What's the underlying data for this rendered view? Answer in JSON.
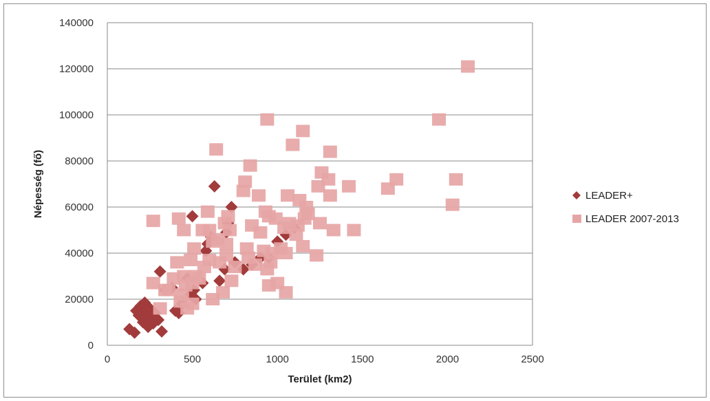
{
  "chart_data": {
    "type": "scatter",
    "xlabel": "Terület (km2)",
    "ylabel": "Népesség (fő)",
    "xlim": [
      0,
      2500
    ],
    "ylim": [
      0,
      140000
    ],
    "x_ticks": [
      0,
      500,
      1000,
      1500,
      2000,
      2500
    ],
    "y_ticks": [
      0,
      20000,
      40000,
      60000,
      80000,
      100000,
      120000,
      140000
    ],
    "grid": "horizontal",
    "legend_position": "right",
    "series": [
      {
        "name": "LEADER+",
        "marker": "diamond",
        "color": "#a23b3b",
        "points": [
          [
            130,
            7000
          ],
          [
            160,
            5500
          ],
          [
            170,
            15000
          ],
          [
            185,
            13000
          ],
          [
            195,
            17000
          ],
          [
            205,
            12000
          ],
          [
            210,
            10000
          ],
          [
            220,
            18500
          ],
          [
            225,
            14500
          ],
          [
            235,
            11000
          ],
          [
            240,
            8000
          ],
          [
            250,
            16000
          ],
          [
            255,
            12500
          ],
          [
            270,
            9500
          ],
          [
            280,
            14000
          ],
          [
            300,
            11000
          ],
          [
            310,
            32000
          ],
          [
            320,
            6000
          ],
          [
            340,
            24000
          ],
          [
            380,
            25000
          ],
          [
            400,
            15000
          ],
          [
            420,
            14000
          ],
          [
            440,
            18000
          ],
          [
            470,
            29000
          ],
          [
            490,
            22000
          ],
          [
            500,
            56000
          ],
          [
            510,
            24000
          ],
          [
            520,
            20000
          ],
          [
            560,
            27000
          ],
          [
            580,
            41000
          ],
          [
            590,
            44000
          ],
          [
            610,
            47000
          ],
          [
            630,
            69000
          ],
          [
            660,
            28000
          ],
          [
            690,
            33000
          ],
          [
            700,
            49000
          ],
          [
            710,
            53000
          ],
          [
            730,
            60000
          ],
          [
            750,
            36000
          ],
          [
            800,
            33000
          ],
          [
            850,
            35000
          ],
          [
            900,
            38000
          ],
          [
            950,
            38000
          ],
          [
            1000,
            45000
          ],
          [
            1050,
            48000
          ],
          [
            1100,
            51000
          ]
        ]
      },
      {
        "name": "LEADER 2007-2013",
        "marker": "square",
        "color": "#e6a5a5",
        "points": [
          [
            270,
            54000
          ],
          [
            270,
            27000
          ],
          [
            310,
            16000
          ],
          [
            340,
            24000
          ],
          [
            360,
            24000
          ],
          [
            390,
            29000
          ],
          [
            410,
            36000
          ],
          [
            420,
            55000
          ],
          [
            430,
            19000
          ],
          [
            440,
            22000
          ],
          [
            450,
            30000
          ],
          [
            450,
            50000
          ],
          [
            460,
            26000
          ],
          [
            470,
            16000
          ],
          [
            490,
            37000
          ],
          [
            500,
            27000
          ],
          [
            500,
            18000
          ],
          [
            510,
            42000
          ],
          [
            520,
            30000
          ],
          [
            540,
            29000
          ],
          [
            560,
            50000
          ],
          [
            570,
            34000
          ],
          [
            590,
            58000
          ],
          [
            600,
            50000
          ],
          [
            600,
            37000
          ],
          [
            620,
            45000
          ],
          [
            620,
            20000
          ],
          [
            640,
            85000
          ],
          [
            650,
            46000
          ],
          [
            660,
            36000
          ],
          [
            680,
            23000
          ],
          [
            690,
            53000
          ],
          [
            700,
            44000
          ],
          [
            700,
            39000
          ],
          [
            710,
            56000
          ],
          [
            720,
            50000
          ],
          [
            730,
            28000
          ],
          [
            750,
            34000
          ],
          [
            800,
            67000
          ],
          [
            810,
            71000
          ],
          [
            820,
            42000
          ],
          [
            830,
            38000
          ],
          [
            840,
            78000
          ],
          [
            850,
            52000
          ],
          [
            870,
            35000
          ],
          [
            890,
            65000
          ],
          [
            900,
            49000
          ],
          [
            920,
            41000
          ],
          [
            930,
            58000
          ],
          [
            940,
            98000
          ],
          [
            940,
            33000
          ],
          [
            950,
            56000
          ],
          [
            950,
            26000
          ],
          [
            960,
            36000
          ],
          [
            970,
            40000
          ],
          [
            990,
            55000
          ],
          [
            1000,
            27000
          ],
          [
            1020,
            42000
          ],
          [
            1040,
            51000
          ],
          [
            1050,
            40000
          ],
          [
            1050,
            23000
          ],
          [
            1060,
            65000
          ],
          [
            1070,
            53000
          ],
          [
            1090,
            87000
          ],
          [
            1110,
            48000
          ],
          [
            1120,
            52000
          ],
          [
            1130,
            63000
          ],
          [
            1150,
            93000
          ],
          [
            1150,
            43000
          ],
          [
            1160,
            55000
          ],
          [
            1170,
            60000
          ],
          [
            1180,
            57000
          ],
          [
            1230,
            39000
          ],
          [
            1240,
            69000
          ],
          [
            1250,
            53000
          ],
          [
            1260,
            75000
          ],
          [
            1300,
            72000
          ],
          [
            1310,
            65000
          ],
          [
            1310,
            84000
          ],
          [
            1330,
            50000
          ],
          [
            1420,
            69000
          ],
          [
            1450,
            50000
          ],
          [
            1650,
            68000
          ],
          [
            1700,
            72000
          ],
          [
            1950,
            98000
          ],
          [
            2030,
            61000
          ],
          [
            2050,
            72000
          ],
          [
            2120,
            121000
          ]
        ]
      }
    ]
  }
}
